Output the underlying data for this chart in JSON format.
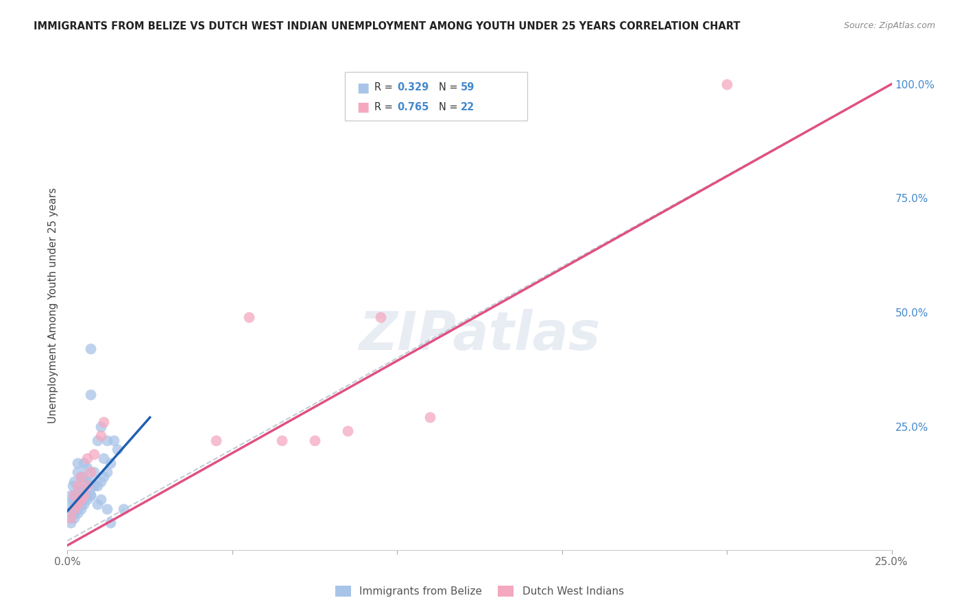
{
  "title": "IMMIGRANTS FROM BELIZE VS DUTCH WEST INDIAN UNEMPLOYMENT AMONG YOUTH UNDER 25 YEARS CORRELATION CHART",
  "source": "Source: ZipAtlas.com",
  "ylabel": "Unemployment Among Youth under 25 years",
  "legend_label1": "Immigrants from Belize",
  "legend_label2": "Dutch West Indians",
  "R1": 0.329,
  "N1": 59,
  "R2": 0.765,
  "N2": 22,
  "color1": "#a8c4e8",
  "color2": "#f4a8c0",
  "line_color1": "#2060b0",
  "line_color2": "#e05080",
  "ref_line_color": "#c0ccd8",
  "xlim": [
    0,
    0.25
  ],
  "ylim": [
    -0.02,
    1.05
  ],
  "watermark": "ZIPatlas",
  "belize_line_x0": 0.0,
  "belize_line_y0": 0.065,
  "belize_line_x1": 0.025,
  "belize_line_y1": 0.27,
  "dutch_line_x0": 0.0,
  "dutch_line_y0": -0.01,
  "dutch_line_x1": 0.25,
  "dutch_line_y1": 1.0,
  "belize_scatter_x": [
    0.0005,
    0.001,
    0.001,
    0.0015,
    0.0015,
    0.002,
    0.002,
    0.002,
    0.0025,
    0.003,
    0.003,
    0.003,
    0.003,
    0.003,
    0.004,
    0.004,
    0.004,
    0.005,
    0.005,
    0.005,
    0.005,
    0.006,
    0.006,
    0.006,
    0.007,
    0.007,
    0.007,
    0.008,
    0.008,
    0.009,
    0.009,
    0.01,
    0.01,
    0.011,
    0.011,
    0.012,
    0.012,
    0.013,
    0.014,
    0.015,
    0.001,
    0.002,
    0.003,
    0.004,
    0.005,
    0.001,
    0.002,
    0.003,
    0.004,
    0.005,
    0.006,
    0.007,
    0.007,
    0.008,
    0.009,
    0.01,
    0.012,
    0.013,
    0.017
  ],
  "belize_scatter_y": [
    0.06,
    0.08,
    0.1,
    0.09,
    0.12,
    0.08,
    0.1,
    0.13,
    0.09,
    0.07,
    0.1,
    0.12,
    0.15,
    0.17,
    0.08,
    0.11,
    0.14,
    0.09,
    0.11,
    0.14,
    0.17,
    0.1,
    0.13,
    0.16,
    0.1,
    0.13,
    0.32,
    0.12,
    0.15,
    0.12,
    0.22,
    0.13,
    0.25,
    0.14,
    0.18,
    0.15,
    0.22,
    0.17,
    0.22,
    0.2,
    0.05,
    0.06,
    0.07,
    0.08,
    0.09,
    0.04,
    0.05,
    0.06,
    0.07,
    0.08,
    0.09,
    0.1,
    0.42,
    0.12,
    0.08,
    0.09,
    0.07,
    0.04,
    0.07
  ],
  "dutch_scatter_x": [
    0.001,
    0.002,
    0.002,
    0.003,
    0.003,
    0.004,
    0.004,
    0.005,
    0.006,
    0.006,
    0.007,
    0.008,
    0.01,
    0.011,
    0.045,
    0.055,
    0.065,
    0.075,
    0.085,
    0.095,
    0.11,
    0.2
  ],
  "dutch_scatter_y": [
    0.05,
    0.07,
    0.1,
    0.08,
    0.12,
    0.09,
    0.14,
    0.1,
    0.12,
    0.18,
    0.15,
    0.19,
    0.23,
    0.26,
    0.22,
    0.49,
    0.22,
    0.22,
    0.24,
    0.49,
    0.27,
    1.0
  ]
}
